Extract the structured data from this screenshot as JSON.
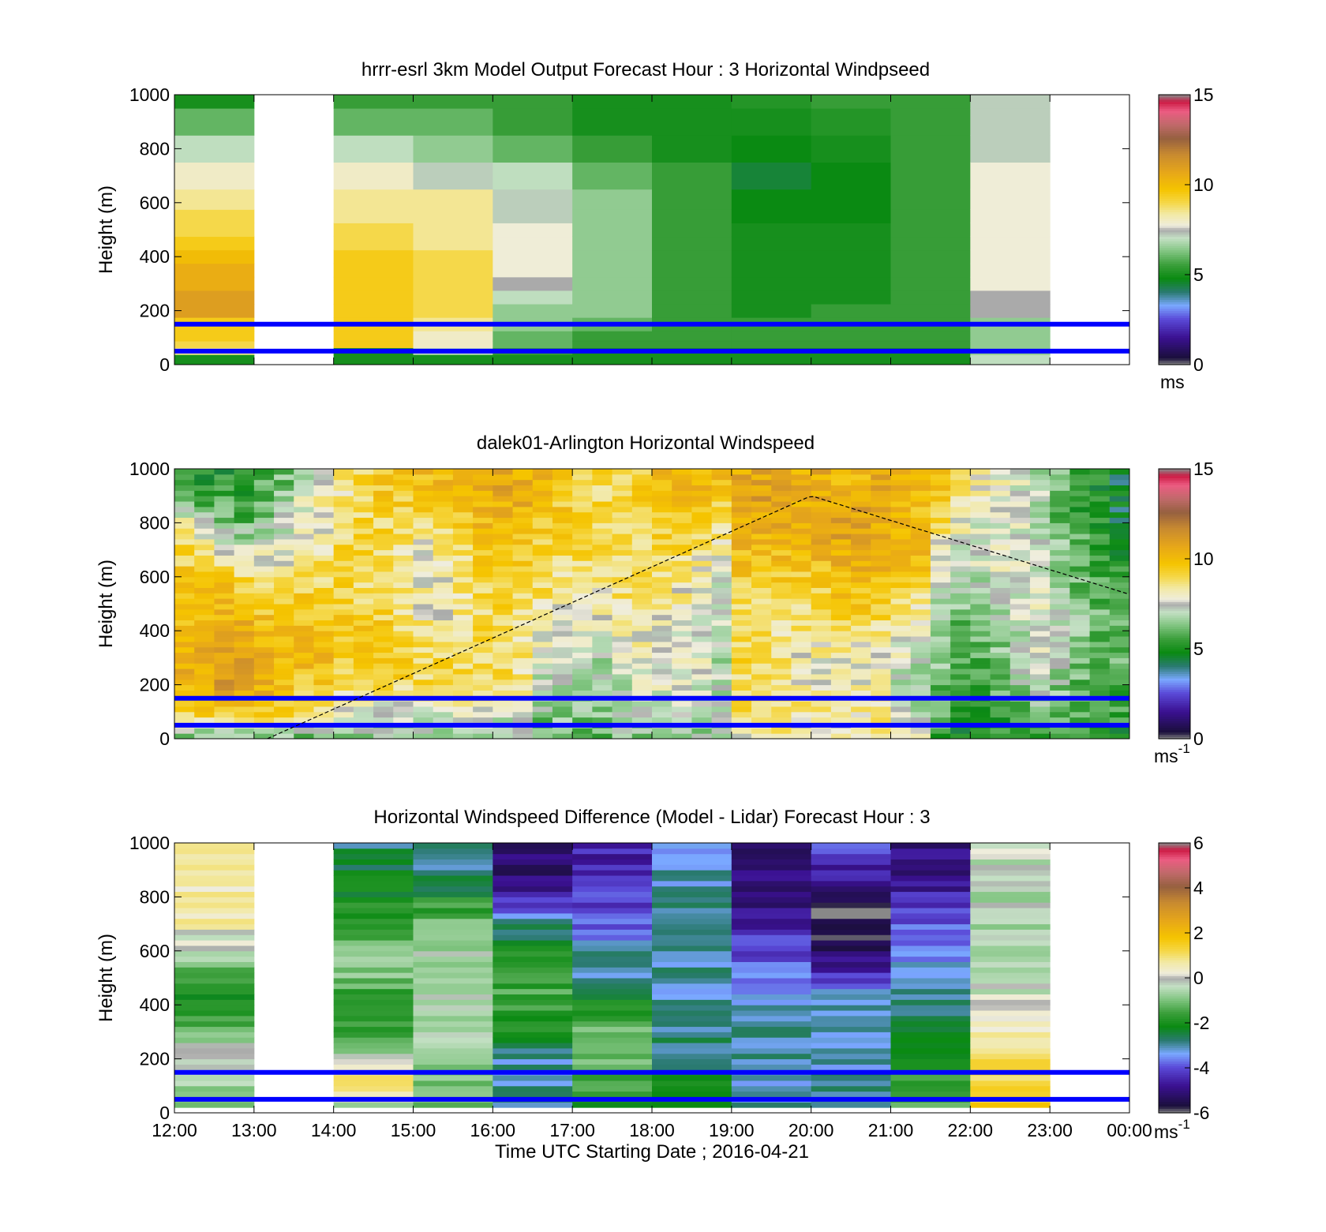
{
  "figure": {
    "xlabel": "Time UTC  Starting Date ; 2016-04-21",
    "xticks": [
      "12:00",
      "13:00",
      "14:00",
      "15:00",
      "16:00",
      "17:00",
      "18:00",
      "19:00",
      "20:00",
      "21:00",
      "22:00",
      "23:00",
      "00:00"
    ]
  },
  "chart_data": [
    {
      "type": "heatmap",
      "title": "hrrr-esrl 3km Model Output   Forecast Hour : 3 Horizontal Windpseed",
      "ylabel": "Height (m)",
      "ylim": [
        0,
        1000
      ],
      "yticks": [
        "0",
        "200",
        "400",
        "600",
        "800",
        "1000"
      ],
      "colorbar": {
        "min": 0,
        "max": 15,
        "ticks": [
          "0",
          "5",
          "10",
          "15"
        ],
        "unit": "ms"
      },
      "time_bins": [
        "12:00",
        "13:00",
        "14:00",
        "15:00",
        "16:00",
        "17:00",
        "18:00",
        "19:00",
        "20:00",
        "21:00",
        "22:00"
      ],
      "missing_bins": [
        "13:00"
      ],
      "height_levels_m": [
        25,
        50,
        75,
        100,
        150,
        200,
        250,
        300,
        350,
        400,
        450,
        500,
        550,
        600,
        700,
        800,
        900,
        1000
      ],
      "windspeed_ms": [
        [
          5.0,
          null,
          5.0,
          5.0,
          5.0,
          5.0,
          5.0,
          5.0,
          5.0,
          5.0,
          7.0
        ],
        [
          8.5,
          null,
          5.0,
          7.0,
          5.5,
          5.0,
          5.0,
          5.0,
          5.0,
          5.0,
          6.5
        ],
        [
          9.0,
          null,
          9.5,
          8.0,
          6.0,
          5.5,
          5.5,
          5.5,
          5.5,
          5.5,
          6.5
        ],
        [
          9.5,
          null,
          9.5,
          8.0,
          6.0,
          5.5,
          5.5,
          5.5,
          5.5,
          5.5,
          6.5
        ],
        [
          9.5,
          null,
          9.5,
          8.5,
          6.5,
          6.0,
          5.5,
          5.5,
          5.5,
          5.5,
          6.5
        ],
        [
          11.0,
          null,
          9.5,
          9.0,
          6.5,
          6.5,
          5.5,
          5.0,
          5.5,
          5.5,
          7.5
        ],
        [
          11.0,
          null,
          9.5,
          9.0,
          7.0,
          6.5,
          5.5,
          5.0,
          5.0,
          5.5,
          7.5
        ],
        [
          10.5,
          null,
          9.5,
          9.0,
          7.5,
          6.5,
          5.5,
          5.0,
          5.0,
          5.5,
          7.8
        ],
        [
          10.5,
          null,
          9.5,
          9.0,
          7.8,
          6.5,
          5.5,
          5.0,
          5.0,
          5.5,
          7.8
        ],
        [
          10.0,
          null,
          9.5,
          9.0,
          7.8,
          6.5,
          5.5,
          5.0,
          5.0,
          5.5,
          7.8
        ],
        [
          9.5,
          null,
          9.0,
          8.5,
          7.8,
          6.5,
          5.5,
          5.0,
          5.0,
          5.5,
          7.8
        ],
        [
          9.0,
          null,
          9.0,
          8.5,
          7.8,
          6.5,
          5.5,
          5.0,
          5.0,
          5.5,
          7.8
        ],
        [
          9.0,
          null,
          8.5,
          8.5,
          7.2,
          6.5,
          5.5,
          4.8,
          4.8,
          5.5,
          7.8
        ],
        [
          8.5,
          null,
          8.5,
          8.5,
          7.2,
          6.5,
          5.5,
          4.8,
          4.8,
          5.5,
          7.8
        ],
        [
          8.0,
          null,
          8.0,
          7.2,
          7.0,
          6.0,
          5.5,
          4.5,
          4.8,
          5.5,
          7.8
        ],
        [
          7.0,
          null,
          7.0,
          6.5,
          6.0,
          5.5,
          5.0,
          4.8,
          5.0,
          5.5,
          7.2
        ],
        [
          6.0,
          null,
          6.0,
          6.0,
          5.5,
          5.0,
          5.0,
          5.0,
          5.2,
          5.5,
          7.2
        ],
        [
          5.0,
          null,
          5.5,
          5.5,
          5.5,
          5.0,
          5.0,
          5.2,
          5.5,
          5.5,
          7.2
        ]
      ],
      "reference_lines_m": [
        50,
        150
      ]
    },
    {
      "type": "heatmap",
      "title": "dalek01-Arlington  Horizontal Windspeed",
      "ylabel": "Height (m)",
      "ylim": [
        0,
        1000
      ],
      "yticks": [
        "0",
        "200",
        "400",
        "600",
        "800",
        "1000"
      ],
      "colorbar": {
        "min": 0,
        "max": 15,
        "ticks": [
          "0",
          "5",
          "10",
          "15"
        ],
        "unit": "ms-1"
      },
      "time_bins": [
        "12:00",
        "12:15",
        "12:30",
        "12:45",
        "13:00",
        "13:15",
        "13:30",
        "13:45",
        "14:00",
        "14:15",
        "14:30",
        "14:45",
        "15:00",
        "15:15",
        "15:30",
        "15:45",
        "16:00",
        "16:15",
        "16:30",
        "16:45",
        "17:00",
        "17:15",
        "17:30",
        "17:45",
        "18:00",
        "18:15",
        "18:30",
        "18:45",
        "19:00",
        "19:15",
        "19:30",
        "19:45",
        "20:00",
        "20:15",
        "20:30",
        "20:45",
        "21:00",
        "21:15",
        "21:30",
        "21:45",
        "22:00",
        "22:15",
        "22:30",
        "22:45",
        "23:00",
        "23:15",
        "23:30",
        "23:45"
      ],
      "profile_heights_m": [
        0,
        100,
        200,
        300,
        400,
        500,
        600,
        700,
        800,
        900,
        1000
      ],
      "windspeed_ms": [
        [
          6.0,
          9.5,
          10.0,
          10.5,
          10.0,
          10.0,
          9.5,
          9.0,
          8.0,
          6.0,
          5.0
        ],
        [
          6.0,
          9.5,
          10.5,
          10.5,
          10.5,
          10.0,
          9.5,
          8.5,
          7.0,
          5.5,
          5.0
        ],
        [
          6.0,
          9.5,
          11.0,
          11.0,
          10.5,
          10.0,
          9.5,
          8.0,
          6.5,
          5.5,
          5.0
        ],
        [
          6.0,
          9.5,
          11.0,
          11.0,
          10.5,
          10.0,
          9.0,
          7.5,
          6.0,
          5.0,
          5.0
        ],
        [
          6.0,
          9.5,
          10.5,
          10.5,
          10.0,
          9.5,
          8.5,
          7.5,
          6.5,
          6.0,
          5.5
        ],
        [
          6.0,
          9.5,
          10.0,
          10.0,
          10.0,
          9.5,
          8.5,
          7.5,
          7.0,
          6.5,
          6.0
        ],
        [
          6.0,
          9.0,
          9.5,
          10.0,
          10.0,
          9.5,
          9.0,
          8.0,
          7.5,
          7.5,
          7.0
        ],
        [
          6.0,
          9.0,
          9.5,
          10.0,
          10.0,
          9.5,
          9.0,
          8.5,
          8.0,
          8.0,
          7.5
        ],
        [
          6.5,
          7.5,
          9.0,
          9.5,
          9.5,
          9.5,
          9.0,
          9.0,
          8.5,
          8.5,
          8.5
        ],
        [
          6.5,
          7.5,
          9.0,
          9.5,
          9.5,
          9.0,
          9.0,
          9.0,
          9.0,
          9.0,
          9.0
        ],
        [
          6.5,
          7.5,
          9.0,
          9.5,
          9.5,
          9.0,
          9.0,
          9.0,
          9.0,
          9.5,
          9.5
        ],
        [
          6.5,
          7.5,
          9.0,
          9.5,
          9.0,
          8.5,
          8.5,
          8.5,
          9.0,
          9.5,
          9.5
        ],
        [
          6.5,
          7.5,
          9.0,
          9.0,
          8.5,
          8.0,
          8.0,
          8.0,
          9.0,
          9.5,
          10.0
        ],
        [
          6.5,
          7.5,
          9.0,
          9.0,
          8.5,
          8.0,
          8.0,
          8.5,
          9.0,
          10.0,
          10.0
        ],
        [
          6.5,
          7.5,
          9.0,
          9.0,
          8.5,
          8.5,
          8.5,
          9.0,
          9.5,
          10.0,
          10.5
        ],
        [
          6.5,
          7.5,
          9.0,
          9.0,
          9.0,
          9.0,
          9.0,
          9.5,
          10.0,
          10.5,
          11.0
        ],
        [
          6.5,
          7.5,
          9.0,
          9.0,
          9.0,
          9.0,
          9.0,
          9.5,
          10.0,
          10.5,
          11.0
        ],
        [
          6.5,
          7.5,
          8.5,
          8.5,
          8.5,
          8.5,
          9.0,
          9.5,
          10.0,
          10.5,
          10.5
        ],
        [
          6.0,
          6.5,
          7.0,
          7.5,
          8.0,
          8.5,
          9.0,
          9.0,
          9.5,
          10.0,
          10.0
        ],
        [
          6.0,
          6.5,
          7.0,
          7.5,
          7.8,
          8.0,
          8.5,
          9.0,
          9.5,
          9.5,
          9.5
        ],
        [
          6.0,
          6.5,
          6.5,
          7.0,
          7.5,
          8.0,
          8.5,
          9.0,
          9.0,
          9.0,
          9.0
        ],
        [
          6.0,
          6.5,
          6.5,
          7.0,
          7.5,
          8.0,
          8.5,
          9.0,
          9.0,
          9.0,
          9.0
        ],
        [
          6.5,
          7.0,
          7.0,
          7.5,
          8.0,
          8.5,
          9.0,
          9.0,
          9.0,
          9.0,
          9.0
        ],
        [
          6.5,
          7.0,
          7.5,
          7.8,
          8.0,
          8.5,
          9.0,
          9.0,
          9.0,
          9.5,
          9.5
        ],
        [
          6.5,
          7.0,
          7.5,
          7.8,
          8.0,
          8.5,
          8.5,
          9.0,
          9.5,
          10.0,
          10.0
        ],
        [
          6.5,
          7.0,
          7.5,
          7.5,
          7.5,
          8.0,
          8.5,
          9.0,
          9.5,
          10.0,
          10.0
        ],
        [
          6.5,
          7.0,
          7.5,
          7.5,
          7.5,
          7.8,
          8.0,
          8.5,
          9.5,
          10.0,
          10.0
        ],
        [
          6.5,
          7.0,
          7.0,
          7.0,
          7.0,
          7.5,
          7.5,
          8.0,
          9.0,
          9.5,
          10.0
        ],
        [
          7.5,
          9.0,
          9.0,
          9.0,
          9.0,
          9.0,
          9.5,
          10.0,
          10.5,
          11.0,
          10.5
        ],
        [
          8.0,
          9.0,
          9.0,
          9.0,
          9.0,
          9.0,
          9.5,
          10.0,
          10.5,
          11.0,
          10.5
        ],
        [
          8.0,
          9.0,
          8.5,
          8.5,
          8.5,
          9.0,
          9.5,
          10.0,
          10.5,
          11.0,
          10.5
        ],
        [
          8.0,
          8.5,
          8.0,
          8.0,
          8.5,
          9.0,
          9.5,
          10.0,
          10.5,
          10.5,
          10.5
        ],
        [
          8.0,
          8.5,
          8.0,
          8.0,
          8.5,
          9.0,
          9.5,
          10.5,
          10.5,
          10.5,
          10.5
        ],
        [
          8.0,
          8.5,
          8.0,
          8.0,
          8.5,
          9.5,
          10.0,
          10.5,
          11.0,
          10.5,
          10.0
        ],
        [
          8.0,
          8.5,
          8.0,
          8.0,
          8.5,
          9.5,
          10.0,
          11.0,
          11.0,
          10.5,
          10.0
        ],
        [
          8.0,
          8.5,
          7.8,
          7.8,
          8.5,
          9.5,
          10.0,
          10.5,
          10.5,
          10.5,
          10.5
        ],
        [
          7.5,
          7.5,
          7.0,
          7.5,
          8.0,
          9.0,
          9.5,
          10.0,
          10.0,
          10.5,
          10.5
        ],
        [
          7.5,
          7.0,
          7.0,
          7.0,
          7.5,
          8.5,
          9.5,
          10.0,
          10.0,
          10.0,
          10.5
        ],
        [
          5.5,
          6.0,
          6.0,
          6.5,
          7.0,
          7.0,
          7.5,
          8.0,
          9.0,
          9.5,
          10.0
        ],
        [
          5.0,
          5.5,
          5.5,
          6.0,
          6.0,
          6.5,
          7.0,
          7.5,
          8.0,
          8.5,
          9.0
        ],
        [
          5.0,
          5.5,
          5.5,
          6.0,
          6.0,
          6.5,
          7.0,
          7.5,
          7.5,
          8.0,
          8.5
        ],
        [
          5.0,
          5.5,
          6.0,
          6.5,
          6.5,
          7.0,
          7.5,
          7.5,
          7.5,
          7.5,
          8.0
        ],
        [
          5.5,
          6.0,
          6.5,
          7.0,
          7.0,
          7.5,
          7.5,
          7.5,
          7.5,
          7.5,
          7.5
        ],
        [
          5.5,
          6.5,
          7.0,
          7.5,
          7.5,
          7.5,
          7.5,
          7.0,
          7.0,
          7.0,
          7.0
        ],
        [
          5.5,
          6.0,
          6.5,
          7.0,
          7.0,
          7.0,
          6.5,
          6.5,
          6.0,
          6.0,
          6.0
        ],
        [
          5.5,
          6.0,
          6.0,
          6.5,
          6.5,
          6.5,
          6.0,
          6.0,
          5.5,
          5.5,
          5.5
        ],
        [
          5.0,
          5.5,
          6.0,
          6.0,
          6.0,
          6.0,
          5.5,
          5.5,
          5.0,
          5.0,
          5.0
        ],
        [
          5.0,
          5.5,
          5.5,
          6.0,
          6.0,
          5.5,
          5.5,
          5.0,
          4.5,
          4.5,
          4.5
        ]
      ],
      "reference_lines_m": [
        50,
        150
      ],
      "dashed_curve": {
        "time": [
          "13:10",
          "20:00",
          "00:00"
        ],
        "height_m": [
          0,
          900,
          535
        ]
      }
    },
    {
      "type": "heatmap",
      "title": "Horizontal Windspeed Difference (Model - Lidar) Forecast Hour : 3",
      "ylabel": "Height (m)",
      "xlabel": "Time UTC  Starting Date ; 2016-04-21",
      "ylim": [
        0,
        1000
      ],
      "yticks": [
        "0",
        "200",
        "400",
        "600",
        "800",
        "1000"
      ],
      "colorbar": {
        "min": -6,
        "max": 6,
        "ticks": [
          "-6",
          "-4",
          "-2",
          "0",
          "2",
          "4",
          "6"
        ],
        "unit": "ms-1"
      },
      "time_bins": [
        "12:00",
        "13:00",
        "14:00",
        "15:00",
        "16:00",
        "17:00",
        "18:00",
        "19:00",
        "20:00",
        "21:00",
        "22:00"
      ],
      "missing_bins": [
        "13:00"
      ],
      "profile_heights_m": [
        25,
        100,
        200,
        300,
        400,
        500,
        600,
        700,
        800,
        900,
        1000
      ],
      "difference_ms": [
        [
          -1.5,
          -0.5,
          0.0,
          -1.0,
          -2.0,
          -1.5,
          -0.5,
          0.5,
          0.5,
          0.8,
          0.5
        ],
        [
          null,
          null,
          null,
          null,
          null,
          null,
          null,
          null,
          null,
          null,
          null
        ],
        [
          -1.0,
          1.5,
          -0.5,
          -1.5,
          -2.0,
          -1.0,
          -1.0,
          -1.5,
          -2.0,
          -2.5,
          -2.8
        ],
        [
          -1.0,
          -1.0,
          -0.8,
          -0.5,
          -0.5,
          -0.5,
          -0.5,
          -1.0,
          -2.0,
          -3.0,
          -3.0
        ],
        [
          -3.0,
          -3.0,
          -3.0,
          -2.0,
          -1.5,
          -1.5,
          -1.8,
          -3.0,
          -4.5,
          -5.2,
          -5.2
        ],
        [
          -2.0,
          -1.5,
          -1.0,
          -1.0,
          -2.0,
          -3.0,
          -3.0,
          -4.0,
          -4.2,
          -4.5,
          -4.5
        ],
        [
          -2.5,
          -2.0,
          -2.5,
          -3.0,
          -3.0,
          -3.0,
          -3.0,
          -3.0,
          -3.0,
          -3.2,
          -3.2
        ],
        [
          -3.0,
          -3.0,
          -3.0,
          -3.0,
          -3.0,
          -3.5,
          -4.0,
          -4.5,
          -5.0,
          -5.2,
          -5.2
        ],
        [
          -3.0,
          -3.0,
          -3.0,
          -3.0,
          -3.0,
          -4.0,
          -5.5,
          -6.0,
          -5.5,
          -4.5,
          -4.0
        ],
        [
          -1.5,
          -1.5,
          -2.0,
          -2.5,
          -3.0,
          -3.0,
          -3.5,
          -4.0,
          -4.5,
          -5.0,
          -5.0
        ],
        [
          1.5,
          1.5,
          1.0,
          0.5,
          0.0,
          -0.5,
          -0.5,
          -0.5,
          -0.5,
          -0.5,
          0.0
        ]
      ],
      "reference_lines_m": [
        50,
        150
      ]
    }
  ]
}
